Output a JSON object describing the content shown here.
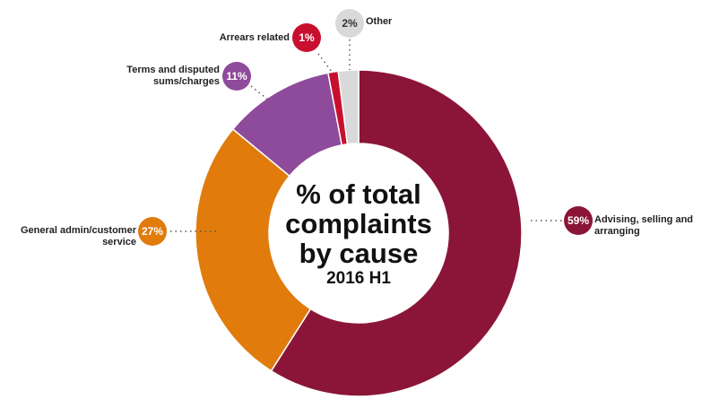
{
  "chart_data": {
    "type": "donut",
    "title": "% of total complaints by cause",
    "subtitle": "2016 H1",
    "categories": [
      "Advising, selling and arranging",
      "General admin/customer service",
      "Terms and disputed sums/charges",
      "Arrears related",
      "Other"
    ],
    "values": [
      59,
      27,
      11,
      1,
      2
    ],
    "value_labels": [
      "59%",
      "27%",
      "11%",
      "1%",
      "2%"
    ],
    "colors": [
      "#8b1538",
      "#e07b0c",
      "#8e4a9b",
      "#c8102e",
      "#d9d9d9"
    ]
  }
}
